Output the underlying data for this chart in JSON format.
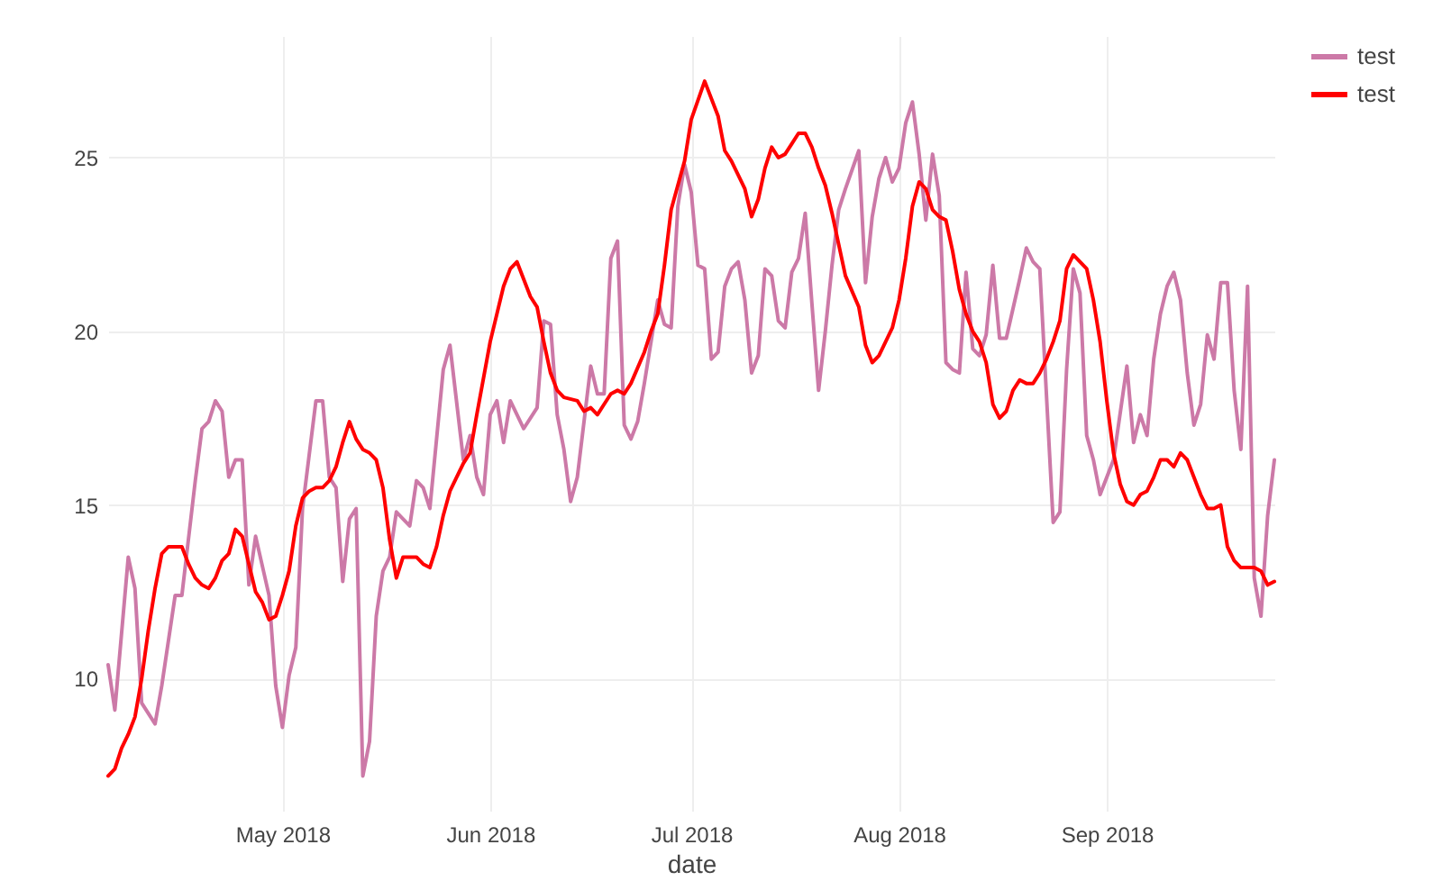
{
  "chart_data": {
    "type": "line",
    "xlabel": "date",
    "grid": true,
    "legend": "top right",
    "xlim": [
      "2018-04-05",
      "2018-09-26"
    ],
    "xticks": [
      {
        "value": "2018-05-01",
        "label": "May 2018"
      },
      {
        "value": "2018-06-01",
        "label": "Jun 2018"
      },
      {
        "value": "2018-07-01",
        "label": "Jul 2018"
      },
      {
        "value": "2018-08-01",
        "label": "Aug 2018"
      },
      {
        "value": "2018-09-01",
        "label": "Sep 2018"
      }
    ],
    "ylim": [
      6.2,
      28.5
    ],
    "yticks": [
      10,
      15,
      20,
      25
    ],
    "series": [
      {
        "name": "test",
        "color": "#cc79a7",
        "x": [
          "2018-04-05",
          "2018-04-06",
          "2018-04-08",
          "2018-04-09",
          "2018-04-10",
          "2018-04-12",
          "2018-04-13",
          "2018-04-15",
          "2018-04-16",
          "2018-04-18",
          "2018-04-19",
          "2018-04-20",
          "2018-04-21",
          "2018-04-22",
          "2018-04-23",
          "2018-04-24",
          "2018-04-25",
          "2018-04-26",
          "2018-04-27",
          "2018-04-29",
          "2018-04-30",
          "2018-05-01",
          "2018-05-02",
          "2018-05-03",
          "2018-05-04",
          "2018-05-06",
          "2018-05-07",
          "2018-05-08",
          "2018-05-09",
          "2018-05-10",
          "2018-05-11",
          "2018-05-12",
          "2018-05-13",
          "2018-05-14",
          "2018-05-15",
          "2018-05-16",
          "2018-05-17",
          "2018-05-18",
          "2018-05-20",
          "2018-05-21",
          "2018-05-22",
          "2018-05-23",
          "2018-05-25",
          "2018-05-26",
          "2018-05-28",
          "2018-05-29",
          "2018-05-30",
          "2018-05-31",
          "2018-06-01",
          "2018-06-02",
          "2018-06-03",
          "2018-06-04",
          "2018-06-06",
          "2018-06-08",
          "2018-06-09",
          "2018-06-10",
          "2018-06-11",
          "2018-06-12",
          "2018-06-13",
          "2018-06-14",
          "2018-06-16",
          "2018-06-17",
          "2018-06-18",
          "2018-06-19",
          "2018-06-20",
          "2018-06-21",
          "2018-06-22",
          "2018-06-23",
          "2018-06-24",
          "2018-06-26",
          "2018-06-27",
          "2018-06-28",
          "2018-06-29",
          "2018-06-30",
          "2018-07-01",
          "2018-07-02",
          "2018-07-03",
          "2018-07-04",
          "2018-07-05",
          "2018-07-06",
          "2018-07-07",
          "2018-07-08",
          "2018-07-09",
          "2018-07-10",
          "2018-07-11",
          "2018-07-12",
          "2018-07-13",
          "2018-07-14",
          "2018-07-15",
          "2018-07-16",
          "2018-07-17",
          "2018-07-18",
          "2018-07-19",
          "2018-07-20",
          "2018-07-21",
          "2018-07-22",
          "2018-07-23",
          "2018-07-24",
          "2018-07-26",
          "2018-07-27",
          "2018-07-28",
          "2018-07-29",
          "2018-07-30",
          "2018-07-31",
          "2018-08-01",
          "2018-08-02",
          "2018-08-03",
          "2018-08-04",
          "2018-08-05",
          "2018-08-06",
          "2018-08-07",
          "2018-08-08",
          "2018-08-09",
          "2018-08-10",
          "2018-08-11",
          "2018-08-12",
          "2018-08-13",
          "2018-08-14",
          "2018-08-15",
          "2018-08-16",
          "2018-08-17",
          "2018-08-19",
          "2018-08-20",
          "2018-08-21",
          "2018-08-22",
          "2018-08-24",
          "2018-08-25",
          "2018-08-26",
          "2018-08-27",
          "2018-08-28",
          "2018-08-29",
          "2018-08-30",
          "2018-08-31",
          "2018-09-02",
          "2018-09-04",
          "2018-09-05",
          "2018-09-06",
          "2018-09-07",
          "2018-09-08",
          "2018-09-09",
          "2018-09-10",
          "2018-09-11",
          "2018-09-12",
          "2018-09-13",
          "2018-09-14",
          "2018-09-15",
          "2018-09-16",
          "2018-09-17",
          "2018-09-18",
          "2018-09-19",
          "2018-09-20",
          "2018-09-21",
          "2018-09-22",
          "2018-09-23",
          "2018-09-24",
          "2018-09-25",
          "2018-09-26"
        ],
        "values": [
          10.4,
          9.1,
          13.5,
          12.6,
          9.3,
          8.7,
          9.8,
          12.4,
          12.4,
          15.7,
          17.2,
          17.4,
          18.0,
          17.7,
          15.8,
          16.3,
          16.3,
          12.7,
          14.1,
          12.4,
          9.8,
          8.6,
          10.1,
          10.9,
          14.9,
          18.0,
          18.0,
          15.8,
          15.5,
          12.8,
          14.6,
          14.9,
          7.2,
          8.2,
          11.8,
          13.1,
          13.5,
          14.8,
          14.4,
          15.7,
          15.5,
          14.9,
          18.9,
          19.6,
          16.3,
          17.0,
          15.8,
          15.3,
          17.6,
          18.0,
          16.8,
          18.0,
          17.2,
          17.8,
          20.3,
          20.2,
          17.6,
          16.6,
          15.1,
          15.8,
          19.0,
          18.2,
          18.2,
          22.1,
          22.6,
          17.3,
          16.9,
          17.4,
          18.5,
          20.9,
          20.2,
          20.1,
          23.6,
          24.8,
          24.0,
          21.9,
          21.8,
          19.2,
          19.4,
          21.3,
          21.8,
          22.0,
          20.9,
          18.8,
          19.3,
          21.8,
          21.6,
          20.3,
          20.1,
          21.7,
          22.1,
          23.4,
          20.8,
          18.3,
          20.0,
          21.9,
          23.5,
          24.1,
          25.2,
          21.4,
          23.3,
          24.4,
          25.0,
          24.3,
          24.7,
          26.0,
          26.6,
          25.1,
          23.2,
          25.1,
          23.9,
          19.1,
          18.9,
          18.8,
          21.7,
          19.5,
          19.3,
          19.9,
          21.9,
          19.8,
          19.8,
          21.5,
          22.4,
          22.0,
          21.8,
          14.5,
          14.8,
          18.9,
          21.8,
          21.1,
          17.0,
          16.3,
          15.3,
          16.3,
          19.0,
          16.8,
          17.6,
          17.0,
          19.2,
          20.5,
          21.3,
          21.7,
          20.9,
          18.8,
          17.3,
          17.9,
          19.9,
          19.2,
          21.4,
          21.4,
          18.3,
          16.6,
          21.3,
          12.9,
          11.8,
          14.7,
          16.3
        ]
      },
      {
        "name": "test",
        "color": "#ff0000",
        "x": [
          "2018-04-05",
          "2018-04-06",
          "2018-04-07",
          "2018-04-08",
          "2018-04-09",
          "2018-04-10",
          "2018-04-11",
          "2018-04-12",
          "2018-04-13",
          "2018-04-14",
          "2018-04-16",
          "2018-04-17",
          "2018-04-18",
          "2018-04-19",
          "2018-04-20",
          "2018-04-21",
          "2018-04-22",
          "2018-04-23",
          "2018-04-24",
          "2018-04-25",
          "2018-04-26",
          "2018-04-27",
          "2018-04-28",
          "2018-04-29",
          "2018-04-30",
          "2018-05-01",
          "2018-05-02",
          "2018-05-03",
          "2018-05-04",
          "2018-05-05",
          "2018-05-06",
          "2018-05-07",
          "2018-05-08",
          "2018-05-09",
          "2018-05-10",
          "2018-05-11",
          "2018-05-12",
          "2018-05-13",
          "2018-05-14",
          "2018-05-15",
          "2018-05-16",
          "2018-05-17",
          "2018-05-18",
          "2018-05-19",
          "2018-05-20",
          "2018-05-21",
          "2018-05-22",
          "2018-05-23",
          "2018-05-24",
          "2018-05-25",
          "2018-05-26",
          "2018-05-28",
          "2018-05-29",
          "2018-05-30",
          "2018-06-01",
          "2018-06-03",
          "2018-06-04",
          "2018-06-05",
          "2018-06-06",
          "2018-06-07",
          "2018-06-08",
          "2018-06-09",
          "2018-06-10",
          "2018-06-11",
          "2018-06-12",
          "2018-06-14",
          "2018-06-15",
          "2018-06-16",
          "2018-06-17",
          "2018-06-18",
          "2018-06-19",
          "2018-06-20",
          "2018-06-21",
          "2018-06-22",
          "2018-06-24",
          "2018-06-25",
          "2018-06-26",
          "2018-06-27",
          "2018-06-28",
          "2018-06-30",
          "2018-07-01",
          "2018-07-03",
          "2018-07-05",
          "2018-07-06",
          "2018-07-07",
          "2018-07-09",
          "2018-07-10",
          "2018-07-11",
          "2018-07-12",
          "2018-07-13",
          "2018-07-14",
          "2018-07-15",
          "2018-07-16",
          "2018-07-17",
          "2018-07-18",
          "2018-07-19",
          "2018-07-20",
          "2018-07-21",
          "2018-07-22",
          "2018-07-23",
          "2018-07-24",
          "2018-07-26",
          "2018-07-27",
          "2018-07-28",
          "2018-07-29",
          "2018-07-30",
          "2018-07-31",
          "2018-08-01",
          "2018-08-02",
          "2018-08-03",
          "2018-08-04",
          "2018-08-05",
          "2018-08-06",
          "2018-08-07",
          "2018-08-08",
          "2018-08-09",
          "2018-08-10",
          "2018-08-11",
          "2018-08-12",
          "2018-08-13",
          "2018-08-14",
          "2018-08-15",
          "2018-08-16",
          "2018-08-17",
          "2018-08-18",
          "2018-08-19",
          "2018-08-20",
          "2018-08-21",
          "2018-08-22",
          "2018-08-23",
          "2018-08-24",
          "2018-08-25",
          "2018-08-26",
          "2018-08-27",
          "2018-08-29",
          "2018-08-30",
          "2018-08-31",
          "2018-09-01",
          "2018-09-02",
          "2018-09-03",
          "2018-09-04",
          "2018-09-05",
          "2018-09-06",
          "2018-09-07",
          "2018-09-08",
          "2018-09-09",
          "2018-09-10",
          "2018-09-11",
          "2018-09-12",
          "2018-09-13",
          "2018-09-14",
          "2018-09-15",
          "2018-09-16",
          "2018-09-17",
          "2018-09-18",
          "2018-09-19",
          "2018-09-20",
          "2018-09-21",
          "2018-09-23",
          "2018-09-24",
          "2018-09-25",
          "2018-09-26"
        ],
        "values": [
          7.2,
          7.4,
          8.0,
          8.4,
          8.9,
          10.0,
          11.4,
          12.6,
          13.6,
          13.8,
          13.8,
          13.3,
          12.9,
          12.7,
          12.6,
          12.9,
          13.4,
          13.6,
          14.3,
          14.1,
          13.3,
          12.5,
          12.2,
          11.7,
          11.8,
          12.4,
          13.1,
          14.4,
          15.2,
          15.4,
          15.5,
          15.5,
          15.7,
          16.1,
          16.8,
          17.4,
          16.9,
          16.6,
          16.5,
          16.3,
          15.5,
          14.0,
          12.9,
          13.5,
          13.5,
          13.5,
          13.3,
          13.2,
          13.8,
          14.7,
          15.4,
          16.2,
          16.5,
          17.6,
          19.7,
          21.3,
          21.8,
          22.0,
          21.5,
          21.0,
          20.7,
          19.7,
          18.8,
          18.3,
          18.1,
          18.0,
          17.7,
          17.8,
          17.6,
          17.9,
          18.2,
          18.3,
          18.2,
          18.5,
          19.4,
          20.0,
          20.5,
          21.9,
          23.5,
          24.9,
          26.1,
          27.2,
          26.2,
          25.2,
          24.9,
          24.1,
          23.3,
          23.8,
          24.7,
          25.3,
          25.0,
          25.1,
          25.4,
          25.7,
          25.7,
          25.3,
          24.7,
          24.2,
          23.4,
          22.5,
          21.6,
          20.7,
          19.6,
          19.1,
          19.3,
          19.7,
          20.1,
          20.9,
          22.1,
          23.6,
          24.3,
          24.1,
          23.5,
          23.3,
          23.2,
          22.3,
          21.2,
          20.5,
          20.0,
          19.7,
          19.1,
          17.9,
          17.5,
          17.7,
          18.3,
          18.6,
          18.5,
          18.5,
          18.8,
          19.2,
          19.7,
          20.3,
          21.8,
          22.2,
          21.8,
          20.9,
          19.7,
          18.0,
          16.5,
          15.6,
          15.1,
          15.0,
          15.3,
          15.4,
          15.8,
          16.3,
          16.3,
          16.1,
          16.5,
          16.3,
          15.8,
          15.3,
          14.9,
          14.9,
          15.0,
          13.8,
          13.4,
          13.2,
          13.2,
          13.1,
          12.7,
          12.8
        ]
      }
    ]
  }
}
